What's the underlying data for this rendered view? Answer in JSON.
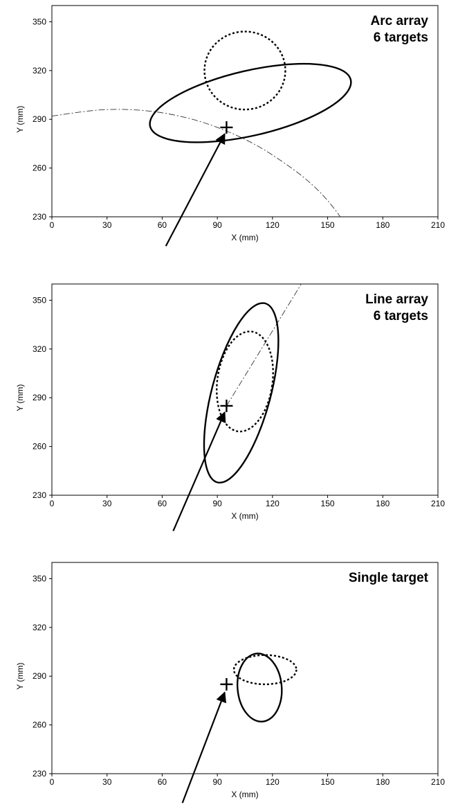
{
  "chart_data": [
    {
      "type": "scatter",
      "title_lines": [
        "Arc array",
        "6 targets"
      ],
      "xlabel": "X (mm)",
      "ylabel": "Y (mm)",
      "xlim": [
        0,
        210
      ],
      "ylim": [
        230,
        360
      ],
      "xticks": [
        0,
        30,
        60,
        90,
        120,
        150,
        180,
        210
      ],
      "yticks": [
        230,
        260,
        290,
        320,
        350
      ],
      "grid": false,
      "target_marker": {
        "x": 95,
        "y": 285
      },
      "approach_arrow": {
        "from": [
          62,
          212
        ],
        "to": [
          94,
          281
        ]
      },
      "solid_ellipse": {
        "cx": 108,
        "cy": 300,
        "rx": 56,
        "ry": 20,
        "angle_deg": -13
      },
      "dotted_ellipse": {
        "cx": 105,
        "cy": 320,
        "rx": 22,
        "ry": 24,
        "angle_deg": 0
      },
      "arc_path": [
        [
          0,
          292
        ],
        [
          30,
          296
        ],
        [
          60,
          294
        ],
        [
          90,
          285
        ],
        [
          120,
          268
        ],
        [
          150,
          240
        ],
        [
          180,
          190
        ]
      ]
    },
    {
      "type": "scatter",
      "title_lines": [
        "Line array",
        "6 targets"
      ],
      "xlabel": "X (mm)",
      "ylabel": "Y (mm)",
      "xlim": [
        0,
        210
      ],
      "ylim": [
        230,
        360
      ],
      "xticks": [
        0,
        30,
        60,
        90,
        120,
        150,
        180,
        210
      ],
      "yticks": [
        230,
        260,
        290,
        320,
        350
      ],
      "grid": false,
      "target_marker": {
        "x": 95,
        "y": 285
      },
      "approach_arrow": {
        "from": [
          66,
          208
        ],
        "to": [
          94,
          281
        ]
      },
      "solid_ellipse": {
        "cx": 103,
        "cy": 293,
        "rx": 16,
        "ry": 57,
        "angle_deg": 15
      },
      "dotted_ellipse": {
        "cx": 105,
        "cy": 300,
        "rx": 15,
        "ry": 31,
        "angle_deg": 8
      },
      "arc_path": [
        [
          95,
          285
        ],
        [
          140,
          368
        ]
      ]
    },
    {
      "type": "scatter",
      "title_lines": [
        "Single target"
      ],
      "xlabel": "X (mm)",
      "ylabel": "Y (mm)",
      "xlim": [
        0,
        210
      ],
      "ylim": [
        230,
        360
      ],
      "xticks": [
        0,
        30,
        60,
        90,
        120,
        150,
        180,
        210
      ],
      "yticks": [
        230,
        260,
        290,
        320,
        350
      ],
      "grid": false,
      "target_marker": {
        "x": 95,
        "y": 285
      },
      "approach_arrow": {
        "from": [
          71,
          212
        ],
        "to": [
          94,
          280
        ]
      },
      "solid_ellipse": {
        "cx": 113,
        "cy": 283,
        "rx": 12,
        "ry": 21,
        "angle_deg": -5
      },
      "dotted_ellipse": {
        "cx": 116,
        "cy": 294,
        "rx": 17,
        "ry": 9,
        "angle_deg": 0
      },
      "arc_path": []
    }
  ]
}
